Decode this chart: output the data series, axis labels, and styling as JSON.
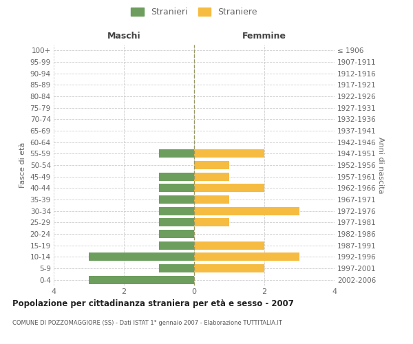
{
  "age_groups": [
    "100+",
    "95-99",
    "90-94",
    "85-89",
    "80-84",
    "75-79",
    "70-74",
    "65-69",
    "60-64",
    "55-59",
    "50-54",
    "45-49",
    "40-44",
    "35-39",
    "30-34",
    "25-29",
    "20-24",
    "15-19",
    "10-14",
    "5-9",
    "0-4"
  ],
  "birth_years": [
    "≤ 1906",
    "1907-1911",
    "1912-1916",
    "1917-1921",
    "1922-1926",
    "1927-1931",
    "1932-1936",
    "1937-1941",
    "1942-1946",
    "1947-1951",
    "1952-1956",
    "1957-1961",
    "1962-1966",
    "1967-1971",
    "1972-1976",
    "1977-1981",
    "1982-1986",
    "1987-1991",
    "1992-1996",
    "1997-2001",
    "2002-2006"
  ],
  "males": [
    0,
    0,
    0,
    0,
    0,
    0,
    0,
    0,
    0,
    1,
    0,
    1,
    1,
    1,
    1,
    1,
    1,
    1,
    3,
    1,
    3
  ],
  "females": [
    0,
    0,
    0,
    0,
    0,
    0,
    0,
    0,
    0,
    2,
    1,
    1,
    2,
    1,
    3,
    1,
    0,
    2,
    3,
    2,
    0
  ],
  "male_color": "#6d9e5e",
  "female_color": "#f5bc41",
  "male_label": "Stranieri",
  "female_label": "Straniere",
  "title": "Popolazione per cittadinanza straniera per età e sesso - 2007",
  "subtitle": "COMUNE DI POZZOMAGGIORE (SS) - Dati ISTAT 1° gennaio 2007 - Elaborazione TUTTITALIA.IT",
  "ylabel_left": "Fasce di età",
  "ylabel_right": "Anni di nascita",
  "xlabel_left": "Maschi",
  "xlabel_right": "Femmine",
  "xlim": 4,
  "background_color": "#ffffff",
  "grid_color": "#cccccc",
  "center_line_color": "#999966",
  "label_color": "#666666",
  "header_color": "#444444"
}
